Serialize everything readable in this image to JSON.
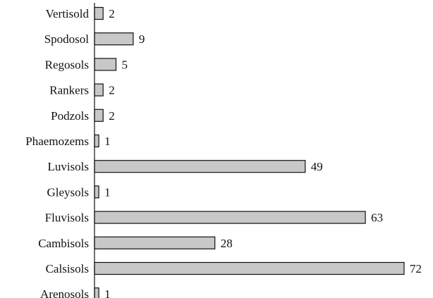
{
  "chart_data": {
    "type": "bar",
    "orientation": "horizontal",
    "categories": [
      "Vertisold",
      "Spodosol",
      "Regosols",
      "Rankers",
      "Podzols",
      "Phaemozems",
      "Luvisols",
      "Gleysols",
      "Fluvisols",
      "Cambisols",
      "Calsisols",
      "Arenosols"
    ],
    "values": [
      2,
      9,
      5,
      2,
      2,
      1,
      49,
      1,
      63,
      28,
      72,
      1
    ],
    "title": "",
    "xlabel": "",
    "ylabel": "",
    "xlim": [
      0,
      72
    ],
    "grid": false,
    "legend": "none",
    "colors": {
      "bar_fill": "#c8c8c8",
      "bar_stroke": "#111111"
    }
  }
}
